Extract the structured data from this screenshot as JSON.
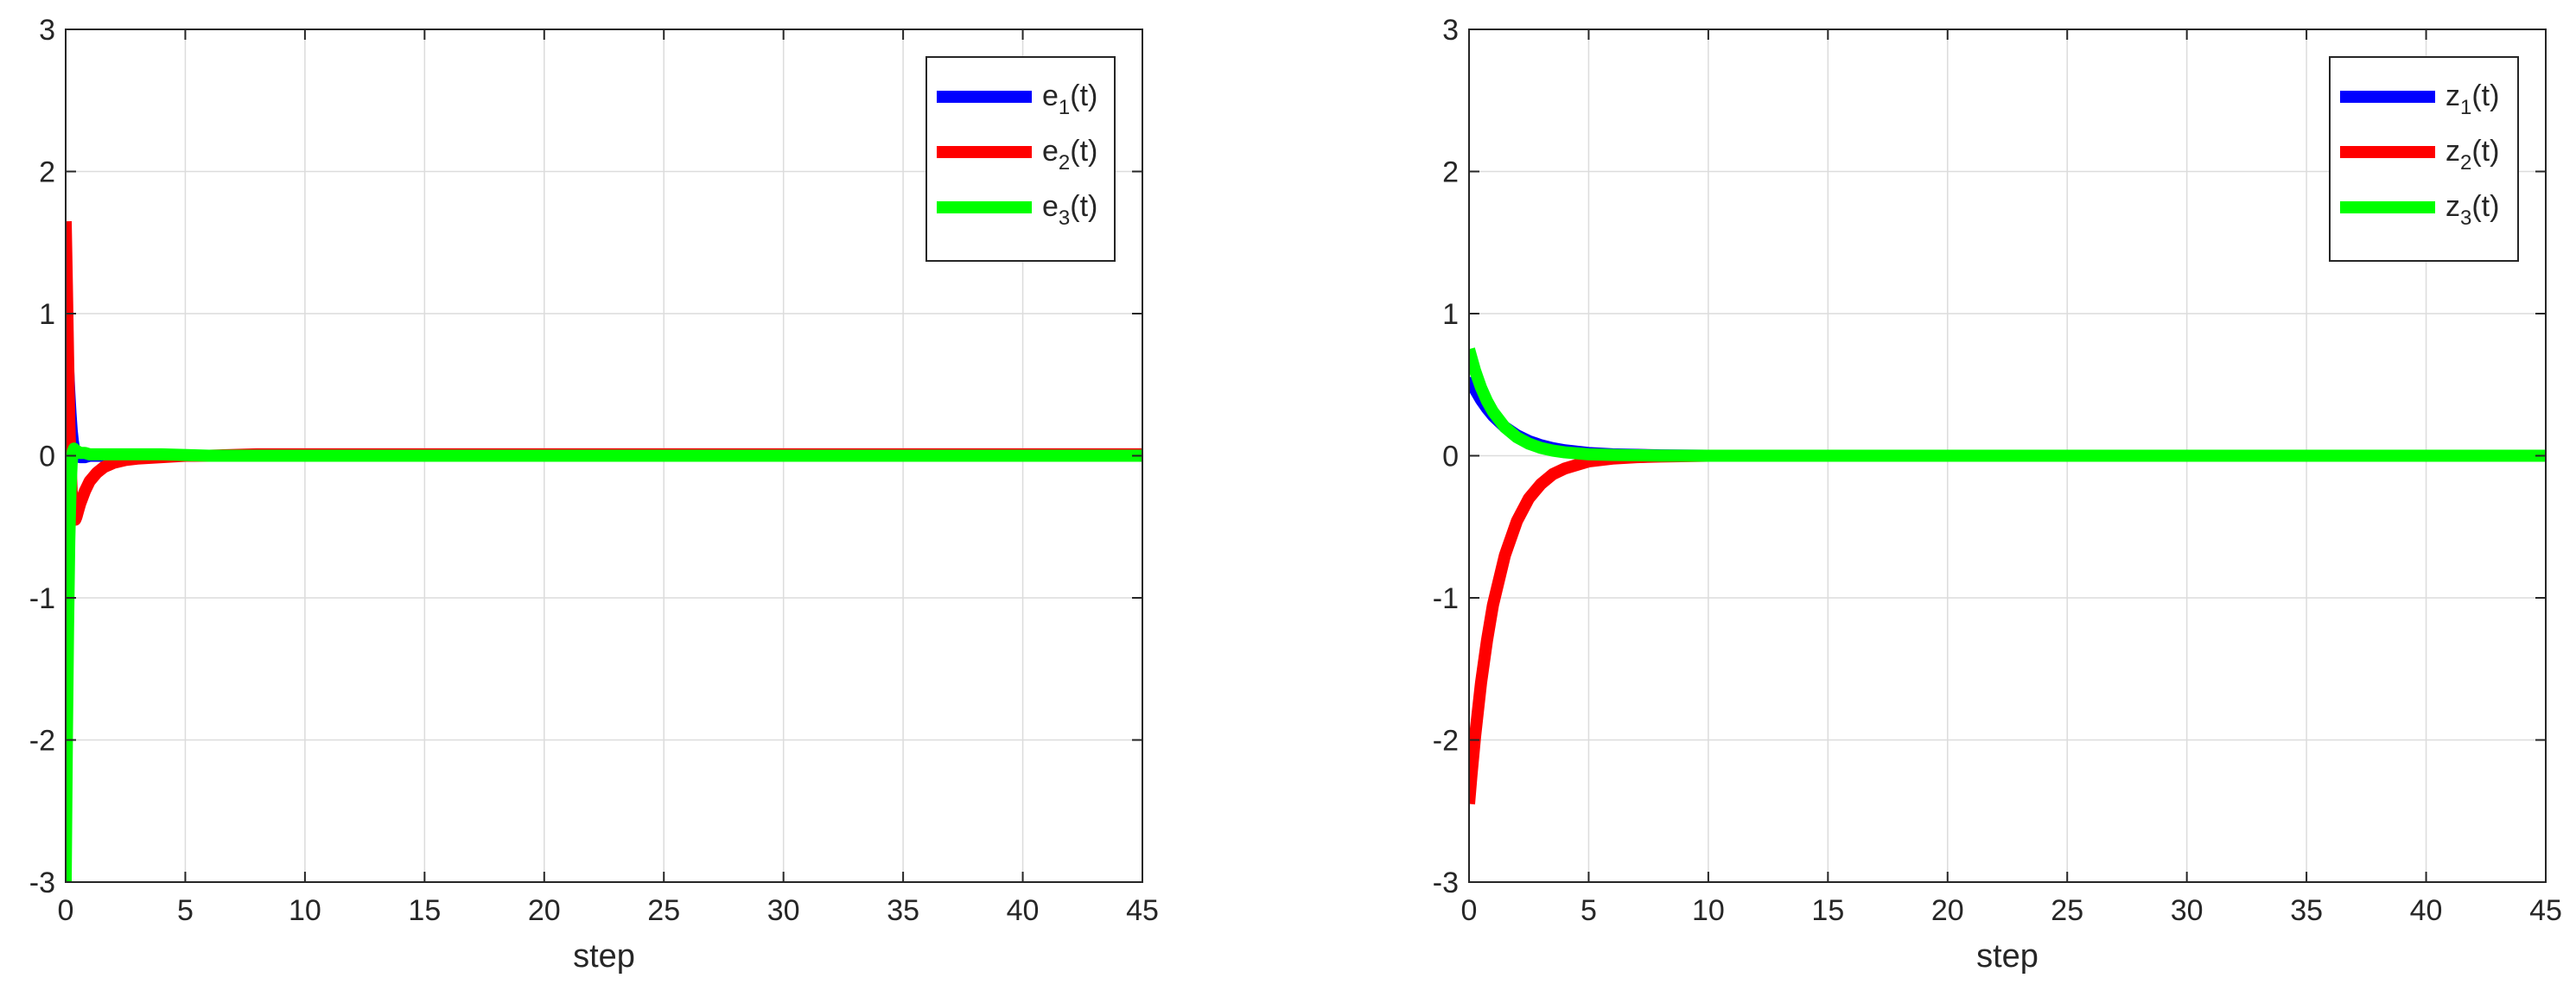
{
  "chart_data": [
    {
      "type": "line",
      "title": "",
      "xlabel": "step",
      "ylabel": "",
      "xlim": [
        0,
        45
      ],
      "ylim": [
        -3,
        3
      ],
      "xticks": [
        0,
        5,
        10,
        15,
        20,
        25,
        30,
        35,
        40,
        45
      ],
      "yticks": [
        -3,
        -2,
        -1,
        0,
        1,
        2,
        3
      ],
      "grid": true,
      "legend_position": "top-right",
      "series": [
        {
          "name": "e1(t)",
          "legend_base": "e",
          "legend_sub": "1",
          "legend_suffix": "(t)",
          "color": "#0000ff",
          "x": [
            0,
            0.05,
            0.1,
            0.15,
            0.2,
            0.25,
            0.3,
            0.35,
            0.4,
            0.5,
            0.6,
            0.8,
            1,
            1.5,
            2,
            3,
            4,
            6,
            10,
            20,
            30,
            45
          ],
          "y": [
            1.0,
            0.8,
            0.62,
            0.45,
            0.3,
            0.18,
            0.1,
            0.05,
            0.02,
            0.0,
            -0.01,
            -0.01,
            0.0,
            0.0,
            0.0,
            0.0,
            0.0,
            0.0,
            0.0,
            0.0,
            0.0,
            0.0
          ]
        },
        {
          "name": "e2(t)",
          "legend_base": "e",
          "legend_sub": "2",
          "legend_suffix": "(t)",
          "color": "#ff0000",
          "x": [
            0,
            0.05,
            0.1,
            0.15,
            0.2,
            0.25,
            0.3,
            0.35,
            0.4,
            0.45,
            0.5,
            0.6,
            0.8,
            1.0,
            1.3,
            1.6,
            2.0,
            2.5,
            3,
            4,
            5,
            6,
            8,
            10,
            20,
            30,
            45
          ],
          "y": [
            1.65,
            1.2,
            0.7,
            0.25,
            -0.05,
            -0.25,
            -0.38,
            -0.44,
            -0.45,
            -0.43,
            -0.4,
            -0.34,
            -0.25,
            -0.18,
            -0.12,
            -0.08,
            -0.05,
            -0.03,
            -0.02,
            -0.01,
            0.0,
            0.0,
            0.01,
            0.01,
            0.01,
            0.01,
            0.01
          ]
        },
        {
          "name": "e3(t)",
          "legend_base": "e",
          "legend_sub": "3",
          "legend_suffix": "(t)",
          "color": "#00ff00",
          "x": [
            0,
            0.05,
            0.1,
            0.15,
            0.2,
            0.25,
            0.3,
            0.35,
            0.4,
            0.5,
            0.6,
            0.8,
            1,
            1.5,
            2,
            3,
            4,
            6,
            10,
            20,
            30,
            45
          ],
          "y": [
            -3.0,
            -2.0,
            -1.2,
            -0.6,
            -0.25,
            -0.05,
            0.03,
            0.05,
            0.04,
            0.03,
            0.02,
            0.02,
            0.01,
            0.01,
            0.01,
            0.01,
            0.01,
            0.0,
            0.0,
            0.0,
            0.0,
            0.0
          ]
        }
      ]
    },
    {
      "type": "line",
      "title": "",
      "xlabel": "step",
      "ylabel": "",
      "xlim": [
        0,
        45
      ],
      "ylim": [
        -3,
        3
      ],
      "xticks": [
        0,
        5,
        10,
        15,
        20,
        25,
        30,
        35,
        40,
        45
      ],
      "yticks": [
        -3,
        -2,
        -1,
        0,
        1,
        2,
        3
      ],
      "grid": true,
      "legend_position": "top-right",
      "series": [
        {
          "name": "z1(t)",
          "legend_base": "z",
          "legend_sub": "1",
          "legend_suffix": "(t)",
          "color": "#0000ff",
          "x": [
            0,
            0.25,
            0.5,
            0.75,
            1,
            1.5,
            2,
            2.5,
            3,
            3.5,
            4,
            5,
            6,
            8,
            10,
            15,
            20,
            30,
            45
          ],
          "y": [
            0.55,
            0.465,
            0.393,
            0.333,
            0.281,
            0.201,
            0.144,
            0.103,
            0.074,
            0.053,
            0.038,
            0.019,
            0.01,
            0.002,
            0.0,
            0.0,
            0.0,
            0.0,
            0.0
          ]
        },
        {
          "name": "z2(t)",
          "legend_base": "z",
          "legend_sub": "2",
          "legend_suffix": "(t)",
          "color": "#ff0000",
          "x": [
            0,
            0.1,
            0.25,
            0.5,
            0.75,
            1,
            1.5,
            2,
            2.5,
            3,
            3.5,
            4,
            5,
            6,
            7,
            8,
            10,
            12,
            15,
            20,
            30,
            45
          ],
          "y": [
            -2.45,
            -2.25,
            -1.98,
            -1.6,
            -1.3,
            -1.05,
            -0.7,
            -0.46,
            -0.3,
            -0.2,
            -0.13,
            -0.09,
            -0.04,
            -0.02,
            -0.01,
            -0.005,
            0.0,
            0.0,
            0.0,
            0.0,
            0.0,
            0.0
          ]
        },
        {
          "name": "z3(t)",
          "legend_base": "z",
          "legend_sub": "3",
          "legend_suffix": "(t)",
          "color": "#00ff00",
          "x": [
            0,
            0.25,
            0.5,
            0.75,
            1,
            1.5,
            2,
            2.5,
            3,
            3.5,
            4,
            5,
            6,
            8,
            10,
            15,
            20,
            30,
            45
          ],
          "y": [
            0.75,
            0.6,
            0.48,
            0.385,
            0.31,
            0.2,
            0.13,
            0.085,
            0.055,
            0.036,
            0.024,
            0.01,
            0.005,
            0.001,
            0.0,
            0.0,
            0.0,
            0.0,
            0.0
          ]
        }
      ]
    }
  ]
}
